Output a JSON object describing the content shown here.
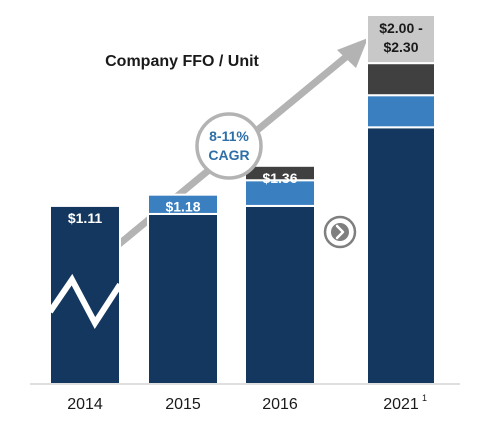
{
  "chart_data": {
    "type": "bar",
    "title": "Company FFO / Unit",
    "categories": [
      "2014",
      "2015",
      "2016",
      "2021"
    ],
    "category_superscripts": [
      "",
      "",
      "",
      "1"
    ],
    "ylim": [
      0,
      2.3
    ],
    "bars": [
      {
        "category": "2014",
        "label": "$1.11",
        "segments": [
          {
            "from": 0,
            "to": 1.11,
            "color": "#13375e"
          }
        ]
      },
      {
        "category": "2015",
        "label": "$1.18",
        "segments": [
          {
            "from": 0,
            "to": 1.06,
            "color": "#13375e"
          },
          {
            "from": 1.06,
            "to": 1.18,
            "color": "#3a7fbf"
          }
        ]
      },
      {
        "category": "2016",
        "label": "$1.36",
        "segments": [
          {
            "from": 0,
            "to": 1.11,
            "color": "#13375e"
          },
          {
            "from": 1.11,
            "to": 1.27,
            "color": "#3a7fbf"
          },
          {
            "from": 1.27,
            "to": 1.36,
            "color": "#404040"
          }
        ]
      },
      {
        "category": "2021",
        "label_lines": [
          "$2.00 -",
          "$2.30"
        ],
        "segments": [
          {
            "from": 0,
            "to": 1.6,
            "color": "#13375e"
          },
          {
            "from": 1.6,
            "to": 1.8,
            "color": "#3a7fbf"
          },
          {
            "from": 1.8,
            "to": 2.0,
            "color": "#404040"
          },
          {
            "from": 2.0,
            "to": 2.3,
            "color": "#c8c8c8"
          }
        ]
      }
    ],
    "annotation": {
      "lines": [
        "8-11%",
        "CAGR"
      ]
    },
    "grid": false,
    "legend": "none"
  },
  "colors": {
    "navy": "#13375e",
    "blue": "#3a7fbf",
    "dark_gray": "#404040",
    "light_gray": "#c8c8c8",
    "arrow": "#b3b3b3",
    "cagr_text": "#2e6fa8"
  },
  "icons": {
    "next": "chevron-right-icon"
  }
}
